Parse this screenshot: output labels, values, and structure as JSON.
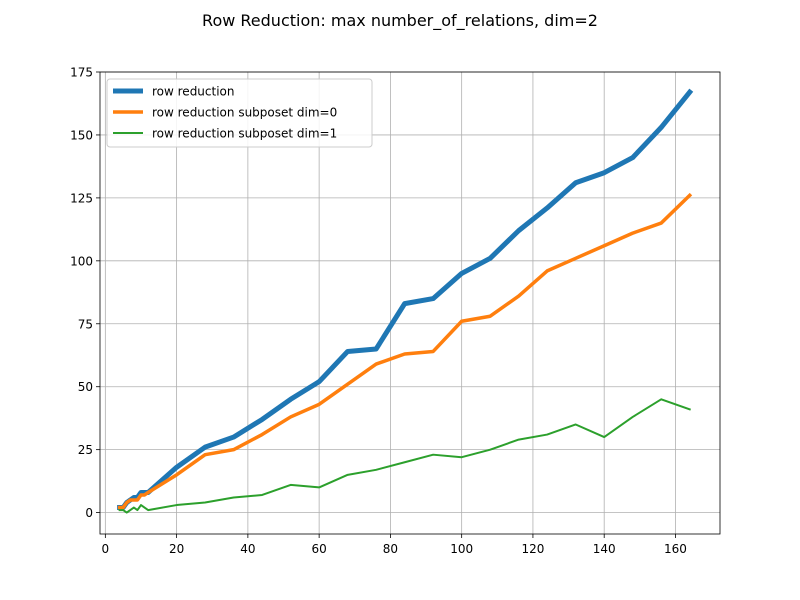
{
  "chart_data": {
    "type": "line",
    "title": "Row Reduction: max number_of_relations, dim=2",
    "xlabel": "",
    "ylabel": "",
    "xlim": [
      -1.5,
      172.5
    ],
    "ylim": [
      -8.5,
      175
    ],
    "xticks": [
      0,
      20,
      40,
      60,
      80,
      100,
      120,
      140,
      160
    ],
    "yticks": [
      0,
      25,
      50,
      75,
      100,
      125,
      150,
      175
    ],
    "grid": true,
    "legend_position": "upper left",
    "series": [
      {
        "name": "row reduction",
        "color": "#1f77b4",
        "x": [
          4,
          5,
          6,
          7,
          8,
          9,
          10,
          11,
          12,
          20,
          28,
          36,
          44,
          52,
          60,
          68,
          76,
          84,
          92,
          100,
          108,
          116,
          124,
          132,
          140,
          148,
          156,
          164
        ],
        "y": [
          2,
          2,
          4,
          5,
          6,
          6,
          8,
          8,
          8,
          18,
          26,
          30,
          37,
          45,
          52,
          64,
          65,
          83,
          85,
          95,
          101,
          112,
          121,
          131,
          135,
          141,
          153,
          167
        ]
      },
      {
        "name": "row reduction subposet dim=0",
        "color": "#ff7f0e",
        "x": [
          4,
          5,
          6,
          7,
          8,
          9,
          10,
          11,
          12,
          20,
          28,
          36,
          44,
          52,
          60,
          68,
          76,
          84,
          92,
          100,
          108,
          116,
          124,
          132,
          140,
          148,
          156,
          164
        ],
        "y": [
          2,
          2,
          4,
          5,
          5,
          5,
          7,
          7,
          8,
          15,
          23,
          25,
          31,
          38,
          43,
          51,
          59,
          63,
          64,
          76,
          78,
          86,
          96,
          101,
          106,
          111,
          115,
          126
        ]
      },
      {
        "name": "row reduction subposet dim=1",
        "color": "#2ca02c",
        "x": [
          4,
          5,
          6,
          7,
          8,
          9,
          10,
          11,
          12,
          20,
          28,
          36,
          44,
          52,
          60,
          68,
          76,
          84,
          92,
          100,
          108,
          116,
          124,
          132,
          140,
          148,
          156,
          164
        ],
        "y": [
          1,
          1,
          0,
          1,
          2,
          1,
          3,
          2,
          1,
          3,
          4,
          6,
          7,
          11,
          10,
          15,
          17,
          20,
          23,
          22,
          25,
          29,
          31,
          35,
          30,
          38,
          45,
          41
        ]
      }
    ]
  }
}
